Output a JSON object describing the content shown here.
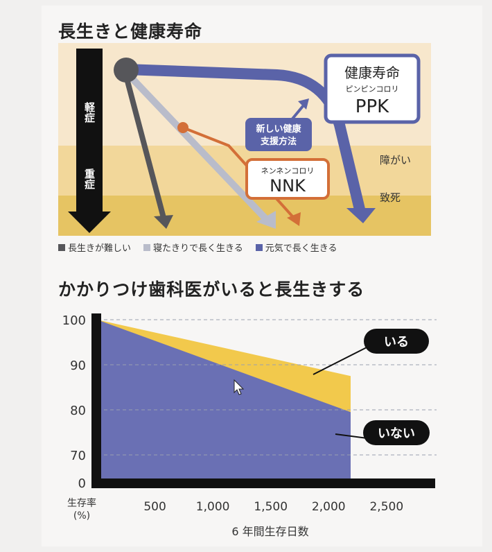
{
  "diagram": {
    "title": "長生きと健康寿命",
    "axis_light": "軽症",
    "axis_heavy": "重症",
    "zone_disability": "障がい",
    "zone_death": "致死",
    "box_ppk_title": "健康寿命",
    "box_ppk_sub": "ピンピンコロリ",
    "box_ppk_code": "PPK",
    "box_support_line1": "新しい健康",
    "box_support_line2": "支援方法",
    "box_nnk_sub": "ネンネンコロリ",
    "box_nnk_code": "NNK",
    "legend": [
      {
        "label": "長生きが難しい",
        "color": "#56565a"
      },
      {
        "label": "寝たきりで長く生きる",
        "color": "#b9bcca"
      },
      {
        "label": "元気で長く生きる",
        "color": "#5a63a8"
      }
    ]
  },
  "chart_title": "かかりつけ歯科医がいると長生きする",
  "chart_data": {
    "type": "area",
    "x_ticks": [
      500,
      1000,
      1500,
      2000,
      2500
    ],
    "x_tick_labels": [
      "500",
      "1,000",
      "1,500",
      "2,000",
      "2,500"
    ],
    "y_ticks": [
      0,
      70,
      80,
      90,
      100
    ],
    "xlabel": "6 年間生存日数",
    "ylabel_line1": "生存率",
    "ylabel_line2": "(%)",
    "series": [
      {
        "name": "いる",
        "color": "#f2c94c",
        "points": [
          [
            0,
            100
          ],
          [
            2190,
            87.5
          ]
        ]
      },
      {
        "name": "いない",
        "color": "#6a70b4",
        "points": [
          [
            0,
            100
          ],
          [
            2190,
            79.5
          ]
        ]
      }
    ]
  }
}
